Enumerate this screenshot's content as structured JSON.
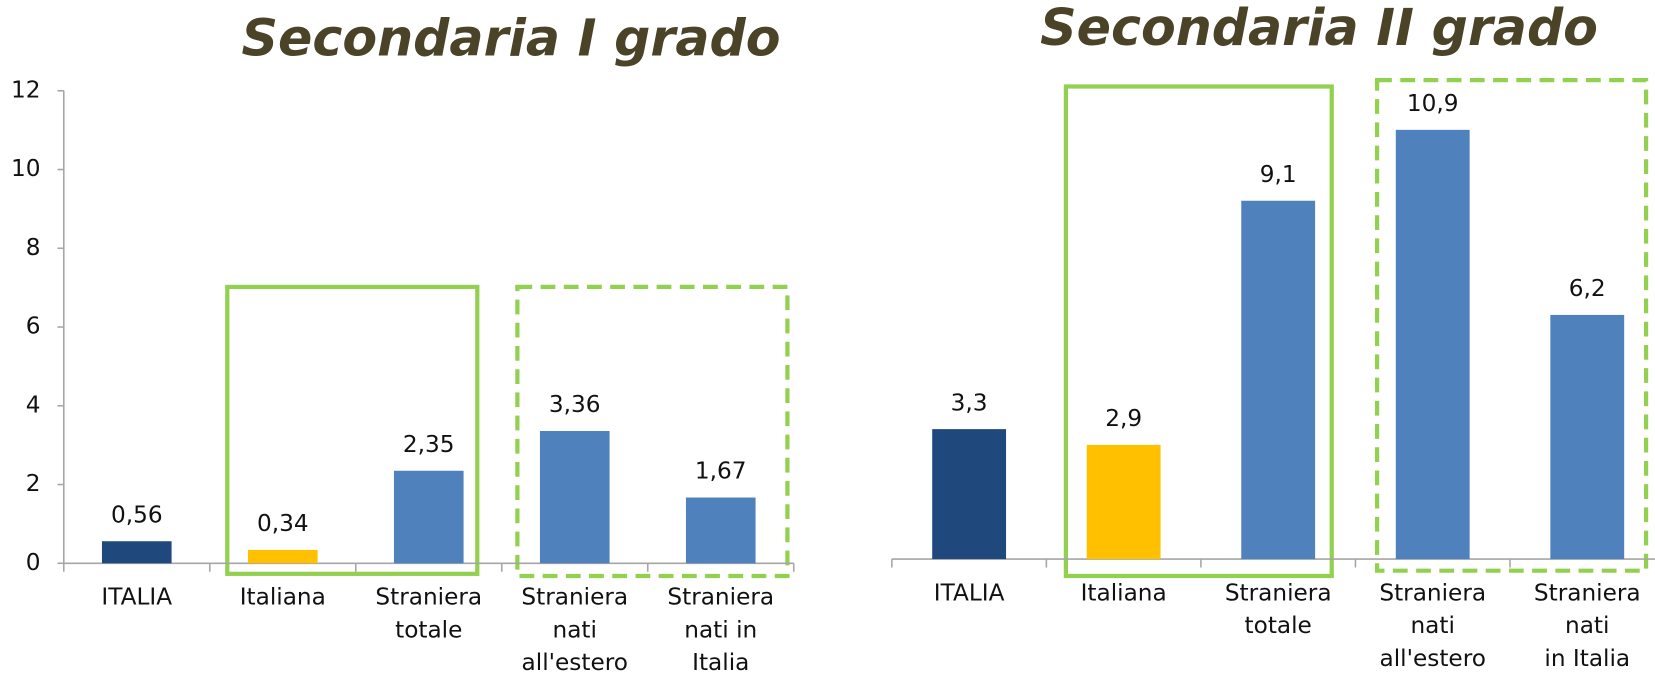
{
  "chart_data": [
    {
      "type": "bar",
      "title": "Secondaria I grado",
      "categories": [
        [
          "ITALIA"
        ],
        [
          "Italiana"
        ],
        [
          "Straniera",
          "totale"
        ],
        [
          "Straniera",
          "nati",
          "all'estero"
        ],
        [
          "Straniera",
          "nati in",
          "Italia"
        ]
      ],
      "values": [
        0.56,
        0.34,
        2.35,
        3.36,
        1.67
      ],
      "value_labels": [
        "0,56",
        "0,34",
        "2,35",
        "3,36",
        "1,67"
      ],
      "colors": [
        "#1f497d",
        "#ffc000",
        "#4f81bd",
        "#4f81bd",
        "#4f81bd"
      ],
      "ylim": [
        0,
        12
      ],
      "yticks": [
        0,
        2,
        4,
        6,
        8,
        10,
        12
      ]
    },
    {
      "type": "bar",
      "title": "Secondaria II grado",
      "categories": [
        [
          "ITALIA"
        ],
        [
          "Italiana"
        ],
        [
          "Straniera",
          "totale"
        ],
        [
          "Straniera",
          "nati",
          "all'estero"
        ],
        [
          "Straniera",
          "nati",
          "in Italia"
        ]
      ],
      "values": [
        3.3,
        2.9,
        9.1,
        10.9,
        6.2
      ],
      "value_labels": [
        "3,3",
        "2,9",
        "9,1",
        "10,9",
        "6,2"
      ],
      "colors": [
        "#1f497d",
        "#ffc000",
        "#4f81bd",
        "#4f81bd",
        "#4f81bd"
      ],
      "ylim": [
        0,
        12
      ]
    }
  ]
}
